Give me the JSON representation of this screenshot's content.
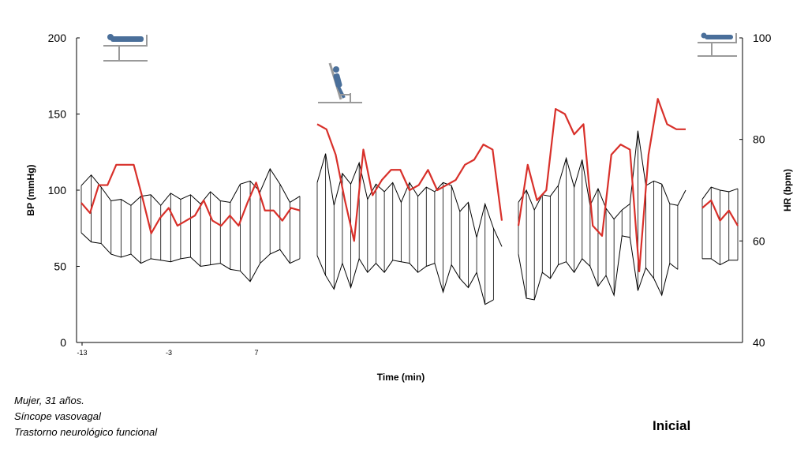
{
  "chart_data": {
    "type": "line",
    "xlabel": "Time (min)",
    "x_tick_labels": [
      "-13",
      "-3",
      "7"
    ],
    "left_axis": {
      "label": "BP (mmHg)",
      "ylim": [
        0,
        200
      ],
      "ticks": [
        0,
        50,
        100,
        150,
        200
      ]
    },
    "right_axis": {
      "label": "HR (bpm)",
      "ylim": [
        40,
        100
      ],
      "ticks": [
        40,
        60,
        80,
        100
      ]
    },
    "segments": [
      {
        "phase": "supine-baseline",
        "sys": [
          103,
          110,
          102,
          93,
          94,
          90,
          96,
          97,
          90,
          98,
          94,
          97,
          91,
          99,
          93,
          92,
          104,
          106,
          99,
          114,
          104,
          92,
          96
        ],
        "dia": [
          72,
          66,
          65,
          58,
          56,
          58,
          52,
          55,
          54,
          53,
          55,
          56,
          50,
          51,
          52,
          48,
          47,
          40,
          52,
          58,
          61,
          52,
          55
        ],
        "hr": [
          67.5,
          65.5,
          71,
          71,
          75,
          75,
          75,
          68.5,
          61.5,
          64.5,
          66.5,
          63,
          64,
          65,
          68,
          64,
          63,
          65,
          63,
          67.5,
          71.5,
          66,
          66,
          64,
          66.5,
          66
        ]
      },
      {
        "phase": "tilt",
        "sys": [
          105,
          124,
          90,
          111,
          104,
          118,
          94,
          104,
          99,
          105,
          92,
          105,
          96,
          102,
          99,
          105,
          103,
          86,
          92,
          69,
          91,
          75,
          63
        ],
        "dia": [
          57,
          44,
          35,
          52,
          36,
          55,
          46,
          52,
          46,
          54,
          53,
          52,
          46,
          50,
          52,
          33,
          51,
          42,
          36,
          46,
          25,
          28
        ],
        "hr": [
          83,
          82,
          77,
          68,
          60,
          78,
          69,
          72,
          74,
          74,
          70,
          71,
          74,
          70,
          71,
          72,
          75,
          76,
          79,
          78,
          64
        ]
      },
      {
        "phase": "tilt-late",
        "sys": [
          92,
          100,
          87,
          97,
          96,
          103,
          121,
          102,
          120,
          90,
          101,
          88,
          81,
          87,
          91,
          139,
          103,
          106,
          104,
          91,
          90,
          100
        ],
        "dia": [
          58,
          29,
          28,
          46,
          42,
          51,
          53,
          46,
          55,
          50,
          37,
          44,
          31,
          70,
          69,
          34,
          49,
          42,
          31,
          52,
          48
        ],
        "hr": [
          63,
          75,
          68,
          70,
          86,
          85,
          81,
          83,
          63,
          61,
          77,
          79,
          78,
          54,
          77,
          88,
          83,
          82,
          82
        ]
      },
      {
        "phase": "supine-recovery",
        "sys": [
          94,
          102,
          100,
          99,
          101
        ],
        "dia": [
          55,
          55,
          51,
          54,
          54
        ],
        "hr": [
          66.5,
          68,
          64,
          66,
          63
        ]
      }
    ],
    "colors": {
      "bp": "#000000",
      "hr": "#d8302a",
      "stand": "#9a9a9a",
      "figure": "#4a6f9a"
    }
  },
  "icons": [
    "supine-patient-icon",
    "tilted-patient-icon",
    "supine-patient-icon"
  ],
  "notes": [
    "Mujer, 31 años.",
    "Síncope vasovagal",
    "Trastorno neurológico funcional"
  ],
  "stage_label": "Inicial"
}
